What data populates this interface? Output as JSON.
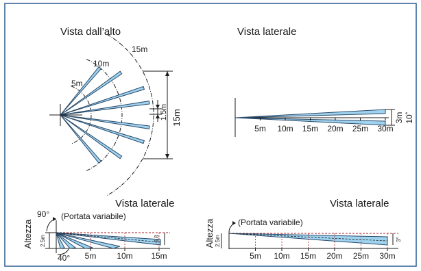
{
  "colors": {
    "frame": "#2a5c8f",
    "beam_fill": "#9fd2ee",
    "beam_stroke": "#2a4a6a",
    "ink": "#1a1a1a",
    "limit_line": "#a8262d"
  },
  "top_view": {
    "title": "Vista dall’alto",
    "range_labels": [
      "5m",
      "10m",
      "15m"
    ],
    "width_dim": "1.5m",
    "height_dim": "15m"
  },
  "side_view_top": {
    "title": "Vista laterale",
    "height_dim": "3m",
    "angle_dim": "10˚",
    "ticks": [
      "5m",
      "10m",
      "15m",
      "20m",
      "25m",
      "30m"
    ]
  },
  "side_view_bottom_left": {
    "title": "Vista laterale",
    "height_axis": "Altezza",
    "variable_note": "(Portata variabile)",
    "angle_top": "90°",
    "angle_bottom": "40°",
    "mount_height": "2.5m",
    "beam_height": "6.8",
    "ticks": [
      "5m",
      "10m",
      "15m"
    ]
  },
  "side_view_bottom_right": {
    "title": "Vista laterale",
    "height_axis": "Altezza",
    "variable_note": "(Portata variabile)",
    "mount_height": "2.5m",
    "beam_angle": "3°",
    "ticks": [
      "5m",
      "10m",
      "15m",
      "20m",
      "25m",
      "30m"
    ]
  }
}
